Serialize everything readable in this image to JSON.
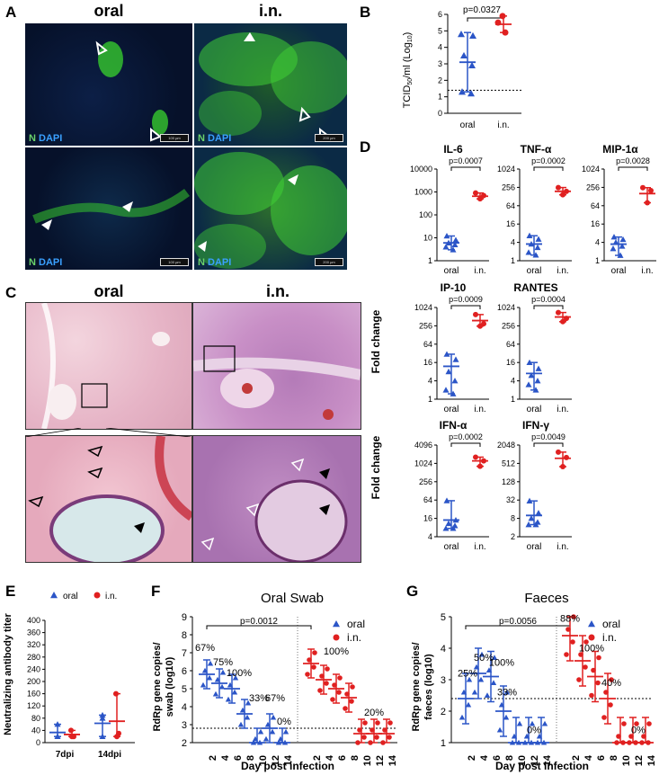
{
  "panels": {
    "A": {
      "letter": "A",
      "col1": "oral",
      "col2": "i.n.",
      "n_label": "N",
      "dapi_label": "DAPI",
      "scale": [
        "100 µm",
        "200 µm",
        "100 µm",
        "200 µm"
      ]
    },
    "B": {
      "letter": "B",
      "ylabel_main": "TCID",
      "ylabel_sub": "50",
      "ylabel_rest": "/ml (Log",
      "ylabel_sub2": "10",
      "ylabel_end": ")",
      "p": "p=0.0327",
      "x": [
        "oral",
        "i.n."
      ],
      "yticks": [
        "0",
        "1",
        "2",
        "3",
        "4",
        "5",
        "6"
      ]
    },
    "C": {
      "letter": "C",
      "col1": "oral",
      "col2": "i.n."
    },
    "D": {
      "letter": "D",
      "ylabel": "Fold change",
      "x": [
        "oral",
        "i.n."
      ],
      "plots": [
        {
          "title": "IL-6",
          "p": "p=0.0007",
          "ticks": [
            "1",
            "10",
            "100",
            "1000",
            "10000"
          ]
        },
        {
          "title": "TNF-α",
          "p": "p=0.0002",
          "ticks": [
            "1",
            "4",
            "16",
            "64",
            "256",
            "1024"
          ]
        },
        {
          "title": "MIP-1α",
          "p": "p=0.0028",
          "ticks": [
            "1",
            "4",
            "16",
            "64",
            "256",
            "1024"
          ]
        },
        {
          "title": "IP-10",
          "p": "p=0.0009",
          "ticks": [
            "1",
            "4",
            "16",
            "64",
            "256",
            "1024"
          ]
        },
        {
          "title": "RANTES",
          "p": "p=0.0004",
          "ticks": [
            "1",
            "4",
            "16",
            "64",
            "256",
            "1024"
          ]
        },
        {
          "title": "IFN-α",
          "p": "p=0.0002",
          "ticks": [
            "4",
            "16",
            "64",
            "256",
            "1024",
            "4096"
          ]
        },
        {
          "title": "IFN-γ",
          "p": "p=0.0049",
          "ticks": [
            "2",
            "8",
            "32",
            "128",
            "512",
            "2048"
          ]
        }
      ]
    },
    "E": {
      "letter": "E",
      "ylabel": "Neutralizing antibody titer",
      "yticks": [
        "0",
        "40",
        "80",
        "120",
        "160",
        "200",
        "240",
        "280",
        "320",
        "360",
        "400"
      ],
      "x": [
        "7dpi",
        "14dpi"
      ],
      "legend": [
        "oral",
        "i.n."
      ]
    },
    "F": {
      "letter": "F",
      "title": "Oral Swab",
      "ylabel1": "RdRp gene copies/",
      "ylabel2": "swab (log10)",
      "xlabel": "Day post infection",
      "p": "p=0.0012",
      "legend": [
        "oral",
        "i.n."
      ],
      "yticks": [
        "2",
        "3",
        "4",
        "5",
        "6",
        "7",
        "8",
        "9"
      ],
      "days": [
        "2",
        "4",
        "6",
        "8",
        "10",
        "12",
        "14"
      ],
      "pct_oral": [
        "67%",
        "75%",
        "100%",
        "33%",
        "67%",
        "0%"
      ],
      "pct_in": [
        "100%",
        "20%"
      ]
    },
    "G": {
      "letter": "G",
      "title": "Faeces",
      "ylabel1": "RdRp gene copies/",
      "ylabel2": "faeces (log10)",
      "xlabel": "Day post infection",
      "p": "p=0.0056",
      "legend": [
        "oral",
        "i.n."
      ],
      "yticks": [
        "1",
        "2",
        "3",
        "4",
        "5"
      ],
      "days": [
        "2",
        "4",
        "6",
        "8",
        "10",
        "12",
        "14"
      ],
      "pct_oral": [
        "25%",
        "50%",
        "100%",
        "33%",
        "0%"
      ],
      "pct_in": [
        "88%",
        "100%",
        "40%",
        "0%"
      ]
    }
  },
  "colors": {
    "oral": "#2b55c7",
    "in": "#e02020",
    "green": "#4ecf3a",
    "dapi": "#1b3d8f"
  },
  "chart_data": [
    {
      "type": "scatter",
      "panel": "B",
      "ylabel": "TCID50/ml (Log10)",
      "ylim": [
        0,
        6
      ],
      "series": [
        {
          "name": "oral",
          "values": [
            4.8,
            4.7,
            3.5,
            2.9,
            1.3,
            1.2
          ],
          "mean": 3.1,
          "sd": 1.8
        },
        {
          "name": "i.n.",
          "values": [
            5.9,
            5.5,
            4.9
          ],
          "mean": 5.4,
          "sd": 0.5
        }
      ]
    },
    {
      "type": "scatter",
      "panel": "D",
      "plot": "IL-6",
      "ylim": [
        1,
        10000
      ],
      "scale": "log",
      "series": [
        {
          "name": "oral",
          "values": [
            12,
            8,
            6,
            5,
            4,
            3
          ],
          "mean": 6
        },
        {
          "name": "i.n.",
          "values": [
            900,
            700,
            500
          ],
          "mean": 650
        }
      ]
    },
    {
      "type": "scatter",
      "panel": "D",
      "plot": "TNF-α",
      "ylim": [
        0.5,
        1024
      ],
      "scale": "log",
      "series": [
        {
          "name": "oral",
          "values": [
            4,
            3,
            2,
            1.5,
            1,
            0.8
          ],
          "mean": 2
        },
        {
          "name": "i.n.",
          "values": [
            220,
            160,
            120
          ],
          "mean": 160
        }
      ]
    },
    {
      "type": "scatter",
      "panel": "D",
      "plot": "MIP-1α",
      "ylim": [
        1,
        1024
      ],
      "scale": "log",
      "series": [
        {
          "name": "oral",
          "values": [
            6,
            5,
            4,
            3,
            2.5,
            1.5
          ],
          "mean": 3.5
        },
        {
          "name": "i.n.",
          "values": [
            250,
            200,
            80
          ],
          "mean": 160
        }
      ]
    },
    {
      "type": "scatter",
      "panel": "D",
      "plot": "IP-10",
      "ylim": [
        1,
        1024
      ],
      "scale": "log",
      "series": [
        {
          "name": "oral",
          "values": [
            30,
            20,
            8,
            4,
            2,
            1.5
          ],
          "mean": 12
        },
        {
          "name": "i.n.",
          "values": [
            600,
            300,
            250
          ],
          "mean": 380
        }
      ]
    },
    {
      "type": "scatter",
      "panel": "D",
      "plot": "RANTES",
      "ylim": [
        1,
        1024
      ],
      "scale": "log",
      "series": [
        {
          "name": "oral",
          "values": [
            16,
            10,
            6,
            4,
            3,
            2
          ],
          "mean": 7
        },
        {
          "name": "i.n.",
          "values": [
            700,
            450,
            350
          ],
          "mean": 500
        }
      ]
    },
    {
      "type": "scatter",
      "panel": "D",
      "plot": "IFN-α",
      "ylim": [
        2,
        4096
      ],
      "scale": "log",
      "series": [
        {
          "name": "oral",
          "values": [
            40,
            8,
            6,
            5,
            4,
            4
          ],
          "mean": 8
        },
        {
          "name": "i.n.",
          "values": [
            1500,
            1100,
            700
          ],
          "mean": 1100
        }
      ]
    },
    {
      "type": "scatter",
      "panel": "D",
      "plot": "IFN-γ",
      "ylim": [
        2,
        2048
      ],
      "scale": "log",
      "series": [
        {
          "name": "oral",
          "values": [
            30,
            12,
            8,
            6,
            5,
            5
          ],
          "mean": 10
        },
        {
          "name": "i.n.",
          "values": [
            1200,
            800,
            400
          ],
          "mean": 750
        }
      ]
    },
    {
      "type": "scatter",
      "panel": "E",
      "ylabel": "Neutralizing antibody titer",
      "ylim": [
        0,
        400
      ],
      "categories": [
        "7dpi",
        "14dpi"
      ],
      "series": [
        {
          "name": "oral",
          "values": [
            [
              60,
              20,
              20
            ],
            [
              90,
              80,
              20
            ]
          ]
        },
        {
          "name": "i.n.",
          "values": [
            [
              40,
              20,
              20
            ],
            [
              160,
              30,
              20
            ]
          ]
        }
      ]
    },
    {
      "type": "scatter",
      "panel": "F",
      "title": "Oral Swab",
      "xlabel": "Day post infection",
      "ylabel": "RdRp gene copies/swab (log10)",
      "ylim": [
        2,
        9
      ],
      "x": [
        2,
        4,
        6,
        8,
        10,
        12,
        14
      ],
      "series": [
        {
          "name": "oral",
          "means": [
            5.8,
            5.3,
            5.0,
            3.6,
            2.0,
            2.8,
            2.0
          ]
        },
        {
          "name": "i.n.",
          "means": [
            6.4,
            5.5,
            5.0,
            4.5,
            2.5,
            2.5,
            2.5
          ]
        }
      ]
    },
    {
      "type": "scatter",
      "panel": "G",
      "title": "Faeces",
      "xlabel": "Day post infection",
      "ylabel": "RdRp gene copies/faeces (log10)",
      "ylim": [
        1,
        5
      ],
      "x": [
        2,
        4,
        6,
        8,
        10,
        12,
        14
      ],
      "series": [
        {
          "name": "oral",
          "means": [
            2.4,
            3.2,
            3.1,
            2.0,
            1.0,
            1.0,
            1.0
          ]
        },
        {
          "name": "i.n.",
          "means": [
            4.4,
            3.6,
            3.1,
            2.4,
            1.0,
            1.0,
            1.0
          ]
        }
      ]
    }
  ]
}
